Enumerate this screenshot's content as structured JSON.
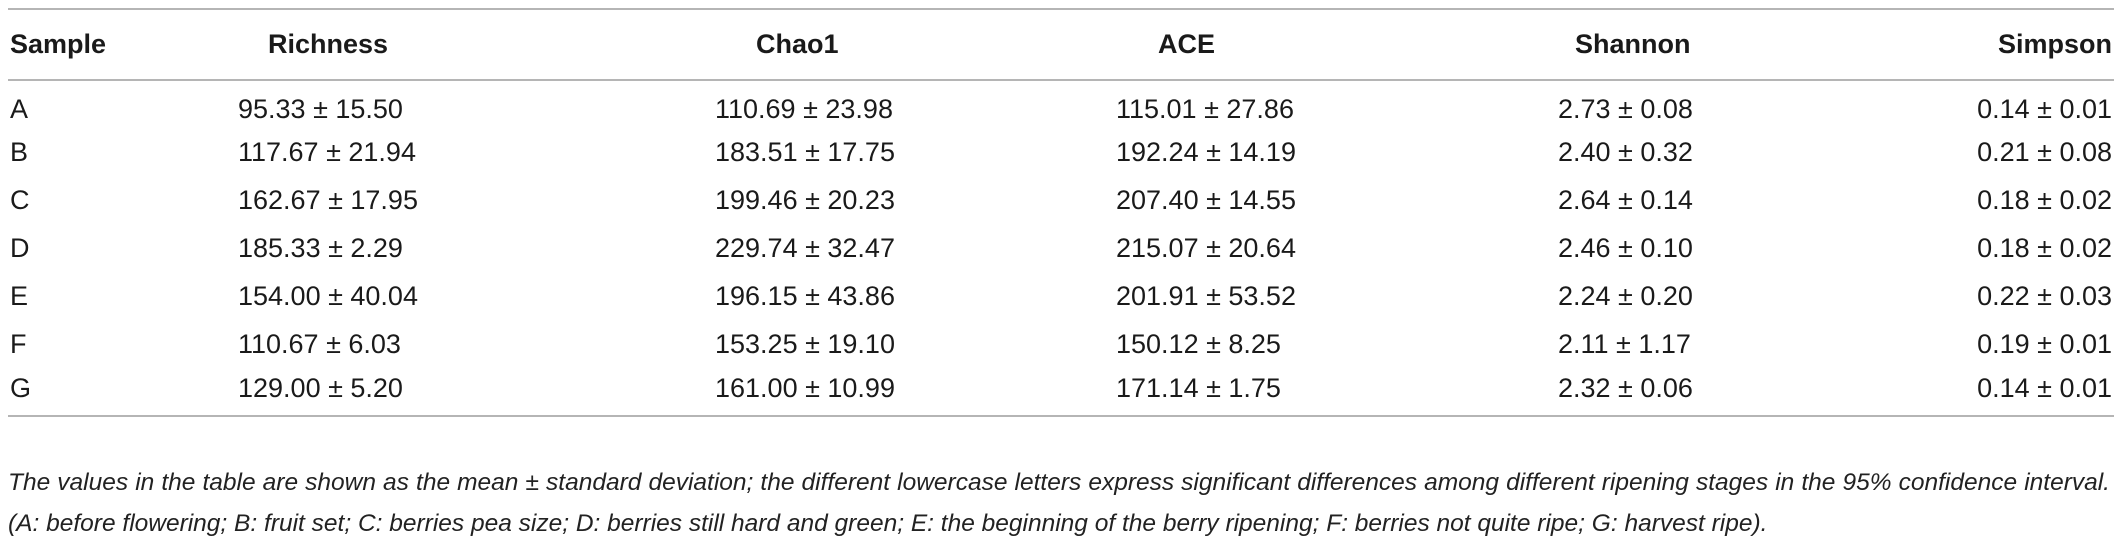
{
  "table": {
    "headers": {
      "sample": "Sample",
      "richness": "Richness",
      "chao1": "Chao1",
      "ace": "ACE",
      "shannon": "Shannon",
      "simpson": "Simpson"
    },
    "rows": [
      {
        "sample": "A",
        "richness": "95.33 ± 15.50",
        "chao1": "110.69 ± 23.98",
        "ace": "115.01 ± 27.86",
        "shannon": "2.73 ±  0.08",
        "simpson": "0.14 ± 0.01"
      },
      {
        "sample": "B",
        "richness": "117.67 ± 21.94",
        "chao1": "183.51 ±  17.75",
        "ace": "192.24 ± 14.19",
        "shannon": "2.40 ± 0.32",
        "simpson": "0.21 ± 0.08"
      },
      {
        "sample": "C",
        "richness": "162.67 ± 17.95",
        "chao1": "199.46 ± 20.23",
        "ace": "207.40 ± 14.55",
        "shannon": "2.64 ± 0.14",
        "simpson": "0.18 ± 0.02"
      },
      {
        "sample": "D",
        "richness": "185.33 ± 2.29",
        "chao1": "229.74 ± 32.47",
        "ace": "215.07 ± 20.64",
        "shannon": "2.46 ± 0.10",
        "simpson": "0.18 ± 0.02"
      },
      {
        "sample": "E",
        "richness": "154.00 ± 40.04",
        "chao1": "196.15 ± 43.86",
        "ace": "201.91 ± 53.52",
        "shannon": "2.24 ± 0.20",
        "simpson": "0.22 ± 0.03"
      },
      {
        "sample": "F",
        "richness": "110.67 ± 6.03",
        "chao1": "153.25 ± 19.10",
        "ace": "150.12 ±  8.25",
        "shannon": "2.11 ± 1.17",
        "simpson": "0.19 ± 0.01"
      },
      {
        "sample": "G",
        "richness": "129.00 ± 5.20",
        "chao1": "161.00 ± 10.99",
        "ace": "171.14 ± 1.75",
        "shannon": "2.32 ± 0.06",
        "simpson": "0.14 ± 0.01"
      }
    ]
  },
  "footnote": "The values in the table are shown as the mean ± standard deviation; the different lowercase letters express significant differences among different ripening stages in the 95% confidence interval. (A: before flowering; B: fruit set; C: berries pea size; D: berries still hard and green; E: the beginning of the berry ripening; F: berries not quite ripe; G: harvest ripe)."
}
